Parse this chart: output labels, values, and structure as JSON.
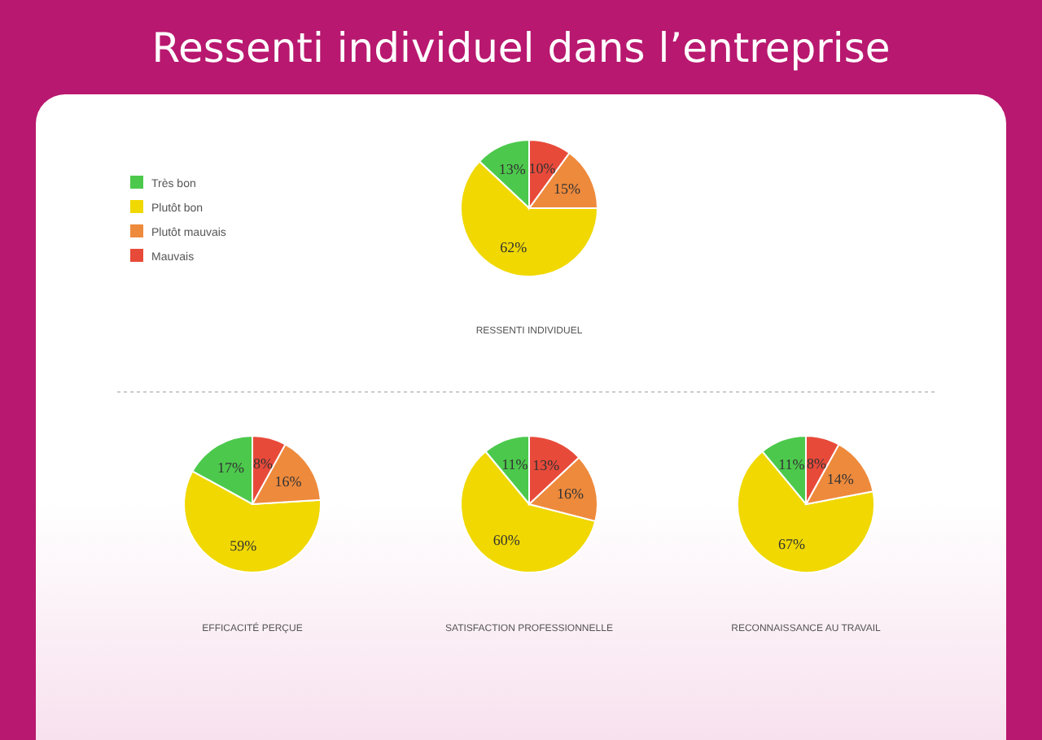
{
  "chart_data": [
    {
      "type": "pie",
      "title": "RESSENTI INDIVIDUEL",
      "annotations": [
        "Ressenti individuel dans l’entreprise"
      ],
      "categories": [
        "Très bon",
        "Plutôt bon",
        "Plutôt mauvais",
        "Mauvais"
      ],
      "values": [
        13,
        62,
        15,
        10
      ],
      "value_labels": [
        "13%",
        "62%",
        "15%",
        "10%"
      ],
      "colors": [
        "#4cc94c",
        "#f0d800",
        "#ee8a3c",
        "#e84a3a"
      ],
      "legend": "left"
    },
    {
      "type": "pie",
      "title": "EFFICACITÉ PERÇUE",
      "categories": [
        null,
        null,
        null,
        null
      ],
      "values": [
        17,
        59,
        16,
        8
      ],
      "value_labels": [
        "17%",
        "59%",
        "16%",
        "8%"
      ],
      "colors": [
        "#4cc94c",
        "#f0d800",
        "#ee8a3c",
        "#e84a3a"
      ]
    },
    {
      "type": "pie",
      "title": "SATISFACTION PROFESSIONNELLE",
      "categories": [
        null,
        null,
        null,
        null
      ],
      "values": [
        11,
        60,
        16,
        13
      ],
      "value_labels": [
        "11%",
        "60%",
        "16%",
        "13%"
      ],
      "colors": [
        "#4cc94c",
        "#f0d800",
        "#ee8a3c",
        "#e84a3a"
      ]
    },
    {
      "type": "pie",
      "title": "RECONNAISSANCE AU TRAVAIL",
      "categories": [
        null,
        null,
        null,
        null
      ],
      "values": [
        11,
        67,
        14,
        8
      ],
      "value_labels": [
        "11%",
        "67%",
        "14%",
        "8%"
      ],
      "colors": [
        "#4cc94c",
        "#f0d800",
        "#ee8a3c",
        "#e84a3a"
      ]
    }
  ]
}
